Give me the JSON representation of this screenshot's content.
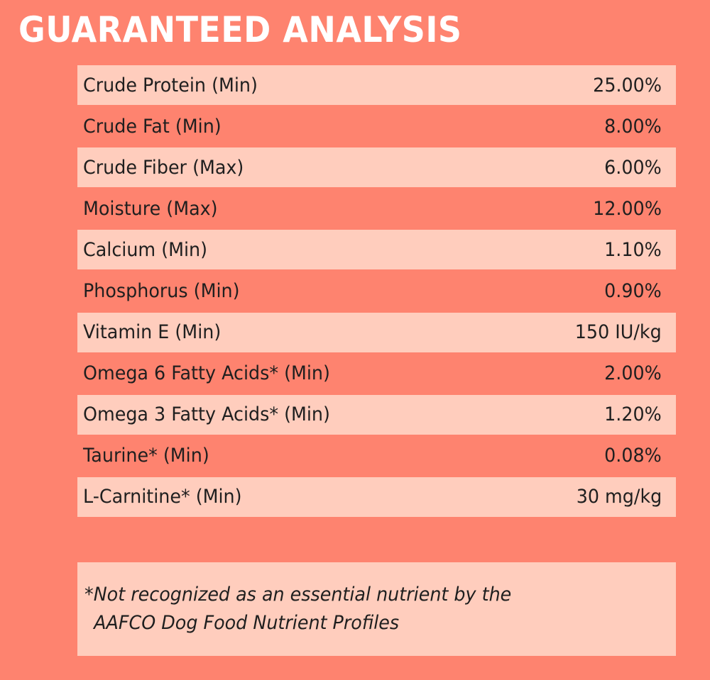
{
  "title": "GUARANTEED ANALYSIS",
  "rows": [
    {
      "label": "Crude Protein (Min)",
      "value": "25.00%"
    },
    {
      "label": "Crude Fat (Min)",
      "value": "8.00%"
    },
    {
      "label": "Crude Fiber (Max)",
      "value": "6.00%"
    },
    {
      "label": "Moisture (Max)",
      "value": "12.00%"
    },
    {
      "label": "Calcium (Min)",
      "value": "1.10%"
    },
    {
      "label": "Phosphorus (Min)",
      "value": "0.90%"
    },
    {
      "label": "Vitamin E (Min)",
      "value": "150 IU/kg"
    },
    {
      "label": "Omega 6 Fatty Acids* (Min)",
      "value": "2.00%"
    },
    {
      "label": "Omega 3 Fatty Acids* (Min)",
      "value": "1.20%"
    },
    {
      "label": "Taurine* (Min)",
      "value": "0.08%"
    },
    {
      "label": "L-Carnitine* (Min)",
      "value": "30 mg/kg"
    }
  ],
  "note": {
    "line1": "*Not recognized as an essential nutrient by the",
    "line2": "AAFCO Dog Food Nutrient Profiles"
  },
  "colors": {
    "background": "#fe836f",
    "row_highlight": "#ffcdbd",
    "title": "#ffffff",
    "text": "#1f1f1f"
  }
}
